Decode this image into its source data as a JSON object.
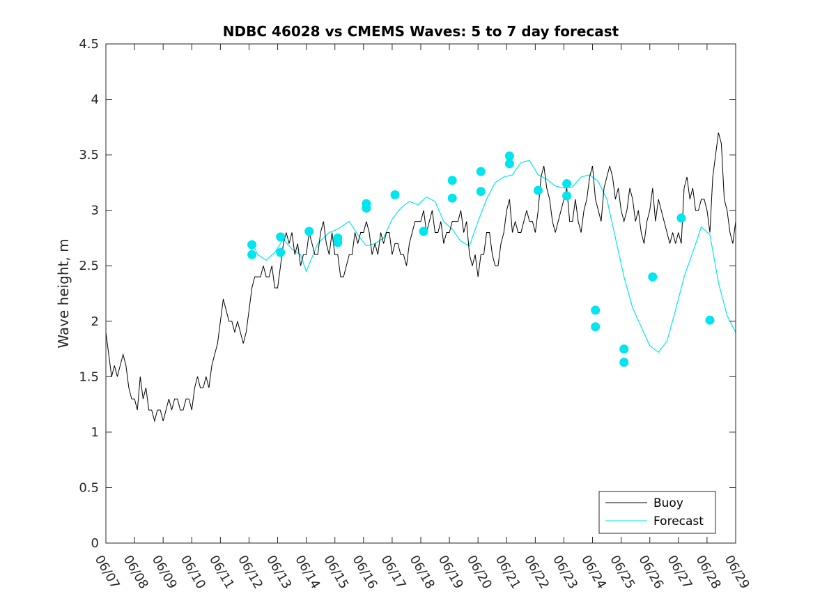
{
  "chart_data": {
    "type": "line",
    "title": "NDBC 46028 vs CMEMS Waves: 5 to 7 day forecast",
    "xlabel": "",
    "ylabel": "Wave height, m",
    "x_ticks": [
      "06/07",
      "06/08",
      "06/09",
      "06/10",
      "06/11",
      "06/12",
      "06/13",
      "06/14",
      "06/15",
      "06/16",
      "06/17",
      "06/18",
      "06/19",
      "06/20",
      "06/21",
      "06/22",
      "06/23",
      "06/24",
      "06/25",
      "06/26",
      "06/27",
      "06/28",
      "06/29"
    ],
    "xlim": [
      0,
      22
    ],
    "ylim": [
      0,
      4.5
    ],
    "y_ticks": [
      "0",
      "0.5",
      "1",
      "1.5",
      "2",
      "2.5",
      "3",
      "3.5",
      "4",
      "4.5"
    ],
    "grid": false,
    "legend_position": "bottom-right",
    "colors": {
      "buoy": "#000000",
      "forecast": "#00e5ee",
      "axis": "#262626"
    },
    "series": [
      {
        "name": "Buoy",
        "comment": "x in days since 06/07",
        "points": [
          [
            0.0,
            1.9
          ],
          [
            0.1,
            1.7
          ],
          [
            0.2,
            1.5
          ],
          [
            0.3,
            1.6
          ],
          [
            0.4,
            1.5
          ],
          [
            0.5,
            1.6
          ],
          [
            0.6,
            1.7
          ],
          [
            0.7,
            1.6
          ],
          [
            0.8,
            1.4
          ],
          [
            0.9,
            1.3
          ],
          [
            1.0,
            1.3
          ],
          [
            1.1,
            1.2
          ],
          [
            1.2,
            1.5
          ],
          [
            1.3,
            1.3
          ],
          [
            1.4,
            1.4
          ],
          [
            1.5,
            1.2
          ],
          [
            1.6,
            1.2
          ],
          [
            1.7,
            1.1
          ],
          [
            1.8,
            1.2
          ],
          [
            1.9,
            1.2
          ],
          [
            2.0,
            1.1
          ],
          [
            2.1,
            1.2
          ],
          [
            2.2,
            1.3
          ],
          [
            2.3,
            1.2
          ],
          [
            2.4,
            1.3
          ],
          [
            2.5,
            1.3
          ],
          [
            2.6,
            1.2
          ],
          [
            2.7,
            1.2
          ],
          [
            2.8,
            1.3
          ],
          [
            2.9,
            1.3
          ],
          [
            3.0,
            1.2
          ],
          [
            3.1,
            1.4
          ],
          [
            3.2,
            1.5
          ],
          [
            3.3,
            1.4
          ],
          [
            3.4,
            1.4
          ],
          [
            3.5,
            1.5
          ],
          [
            3.6,
            1.4
          ],
          [
            3.7,
            1.6
          ],
          [
            3.8,
            1.7
          ],
          [
            3.9,
            1.8
          ],
          [
            4.0,
            2.0
          ],
          [
            4.1,
            2.2
          ],
          [
            4.2,
            2.1
          ],
          [
            4.3,
            2.0
          ],
          [
            4.4,
            2.0
          ],
          [
            4.5,
            1.9
          ],
          [
            4.6,
            2.0
          ],
          [
            4.7,
            1.9
          ],
          [
            4.8,
            1.8
          ],
          [
            4.9,
            1.9
          ],
          [
            5.0,
            2.1
          ],
          [
            5.1,
            2.3
          ],
          [
            5.2,
            2.4
          ],
          [
            5.3,
            2.4
          ],
          [
            5.4,
            2.4
          ],
          [
            5.5,
            2.5
          ],
          [
            5.6,
            2.4
          ],
          [
            5.7,
            2.4
          ],
          [
            5.8,
            2.5
          ],
          [
            5.9,
            2.3
          ],
          [
            6.0,
            2.3
          ],
          [
            6.1,
            2.5
          ],
          [
            6.2,
            2.7
          ],
          [
            6.3,
            2.8
          ],
          [
            6.4,
            2.7
          ],
          [
            6.5,
            2.8
          ],
          [
            6.6,
            2.6
          ],
          [
            6.7,
            2.7
          ],
          [
            6.8,
            2.5
          ],
          [
            6.9,
            2.6
          ],
          [
            7.0,
            2.6
          ],
          [
            7.1,
            2.8
          ],
          [
            7.2,
            2.7
          ],
          [
            7.3,
            2.6
          ],
          [
            7.4,
            2.6
          ],
          [
            7.5,
            2.8
          ],
          [
            7.6,
            2.9
          ],
          [
            7.7,
            2.7
          ],
          [
            7.8,
            2.6
          ],
          [
            7.9,
            2.8
          ],
          [
            8.0,
            2.6
          ],
          [
            8.1,
            2.6
          ],
          [
            8.2,
            2.4
          ],
          [
            8.3,
            2.4
          ],
          [
            8.4,
            2.5
          ],
          [
            8.5,
            2.6
          ],
          [
            8.6,
            2.6
          ],
          [
            8.7,
            2.8
          ],
          [
            8.8,
            2.7
          ],
          [
            8.9,
            2.8
          ],
          [
            9.0,
            2.8
          ],
          [
            9.1,
            2.9
          ],
          [
            9.2,
            2.8
          ],
          [
            9.3,
            2.6
          ],
          [
            9.4,
            2.7
          ],
          [
            9.5,
            2.6
          ],
          [
            9.6,
            2.8
          ],
          [
            9.7,
            2.7
          ],
          [
            9.8,
            2.8
          ],
          [
            9.9,
            2.8
          ],
          [
            10.0,
            2.6
          ],
          [
            10.1,
            2.7
          ],
          [
            10.2,
            2.7
          ],
          [
            10.3,
            2.6
          ],
          [
            10.4,
            2.6
          ],
          [
            10.5,
            2.5
          ],
          [
            10.6,
            2.7
          ],
          [
            10.7,
            2.8
          ],
          [
            10.8,
            2.9
          ],
          [
            10.9,
            2.9
          ],
          [
            11.0,
            2.9
          ],
          [
            11.1,
            3.0
          ],
          [
            11.2,
            2.8
          ],
          [
            11.3,
            2.9
          ],
          [
            11.4,
            3.0
          ],
          [
            11.5,
            2.8
          ],
          [
            11.6,
            2.8
          ],
          [
            11.7,
            2.9
          ],
          [
            11.8,
            2.7
          ],
          [
            11.9,
            2.8
          ],
          [
            12.0,
            2.8
          ],
          [
            12.1,
            2.9
          ],
          [
            12.2,
            2.9
          ],
          [
            12.3,
            2.9
          ],
          [
            12.4,
            3.0
          ],
          [
            12.5,
            2.8
          ],
          [
            12.6,
            2.9
          ],
          [
            12.7,
            2.6
          ],
          [
            12.8,
            2.5
          ],
          [
            12.9,
            2.6
          ],
          [
            13.0,
            2.4
          ],
          [
            13.1,
            2.6
          ],
          [
            13.2,
            2.6
          ],
          [
            13.3,
            2.8
          ],
          [
            13.4,
            2.8
          ],
          [
            13.5,
            2.6
          ],
          [
            13.6,
            2.5
          ],
          [
            13.7,
            2.5
          ],
          [
            13.8,
            2.7
          ],
          [
            13.9,
            2.8
          ],
          [
            14.0,
            3.0
          ],
          [
            14.1,
            3.1
          ],
          [
            14.2,
            2.8
          ],
          [
            14.3,
            2.9
          ],
          [
            14.4,
            2.8
          ],
          [
            14.5,
            2.8
          ],
          [
            14.6,
            2.9
          ],
          [
            14.7,
            3.0
          ],
          [
            14.8,
            2.9
          ],
          [
            14.9,
            2.9
          ],
          [
            15.0,
            2.8
          ],
          [
            15.1,
            3.0
          ],
          [
            15.2,
            3.3
          ],
          [
            15.3,
            3.4
          ],
          [
            15.4,
            3.2
          ],
          [
            15.5,
            3.1
          ],
          [
            15.6,
            2.9
          ],
          [
            15.7,
            2.8
          ],
          [
            15.8,
            2.9
          ],
          [
            15.9,
            3.0
          ],
          [
            16.0,
            3.1
          ],
          [
            16.1,
            3.2
          ],
          [
            16.2,
            2.9
          ],
          [
            16.3,
            2.9
          ],
          [
            16.4,
            3.1
          ],
          [
            16.5,
            2.9
          ],
          [
            16.6,
            2.8
          ],
          [
            16.7,
            3.0
          ],
          [
            16.8,
            3.1
          ],
          [
            16.9,
            3.3
          ],
          [
            17.0,
            3.4
          ],
          [
            17.1,
            3.1
          ],
          [
            17.2,
            3.0
          ],
          [
            17.3,
            2.9
          ],
          [
            17.4,
            3.2
          ],
          [
            17.5,
            3.3
          ],
          [
            17.6,
            3.4
          ],
          [
            17.7,
            3.3
          ],
          [
            17.8,
            3.1
          ],
          [
            17.9,
            3.2
          ],
          [
            18.0,
            3.0
          ],
          [
            18.1,
            2.9
          ],
          [
            18.2,
            3.0
          ],
          [
            18.3,
            3.2
          ],
          [
            18.4,
            3.1
          ],
          [
            18.5,
            2.9
          ],
          [
            18.6,
            3.0
          ],
          [
            18.7,
            2.8
          ],
          [
            18.8,
            2.7
          ],
          [
            18.9,
            2.9
          ],
          [
            19.0,
            3.0
          ],
          [
            19.1,
            3.2
          ],
          [
            19.2,
            2.9
          ],
          [
            19.3,
            3.1
          ],
          [
            19.4,
            3.0
          ],
          [
            19.5,
            2.9
          ],
          [
            19.6,
            2.8
          ],
          [
            19.7,
            2.7
          ],
          [
            19.8,
            2.8
          ],
          [
            19.9,
            2.7
          ],
          [
            20.0,
            2.8
          ],
          [
            20.1,
            2.7
          ],
          [
            20.2,
            3.2
          ],
          [
            20.3,
            3.3
          ],
          [
            20.4,
            3.1
          ],
          [
            20.5,
            3.2
          ],
          [
            20.6,
            3.0
          ],
          [
            20.7,
            3.0
          ],
          [
            20.8,
            3.1
          ],
          [
            20.9,
            3.1
          ],
          [
            21.0,
            3.0
          ],
          [
            21.1,
            2.8
          ],
          [
            21.2,
            3.3
          ],
          [
            21.3,
            3.5
          ],
          [
            21.4,
            3.7
          ],
          [
            21.5,
            3.6
          ],
          [
            21.6,
            3.1
          ],
          [
            21.7,
            3.0
          ],
          [
            21.8,
            2.8
          ],
          [
            21.9,
            2.7
          ],
          [
            22.0,
            2.9
          ]
        ]
      },
      {
        "name": "Forecast",
        "points": [
          [
            5.1,
            2.72
          ],
          [
            5.3,
            2.6
          ],
          [
            5.6,
            2.55
          ],
          [
            5.9,
            2.62
          ],
          [
            6.2,
            2.74
          ],
          [
            6.5,
            2.65
          ],
          [
            6.8,
            2.6
          ],
          [
            7.0,
            2.45
          ],
          [
            7.4,
            2.7
          ],
          [
            7.8,
            2.8
          ],
          [
            8.1,
            2.83
          ],
          [
            8.5,
            2.9
          ],
          [
            8.8,
            2.78
          ],
          [
            9.1,
            2.68
          ],
          [
            9.4,
            2.7
          ],
          [
            9.7,
            2.75
          ],
          [
            10.0,
            2.92
          ],
          [
            10.3,
            3.02
          ],
          [
            10.6,
            3.08
          ],
          [
            10.9,
            3.05
          ],
          [
            11.2,
            3.12
          ],
          [
            11.5,
            3.08
          ],
          [
            11.8,
            2.9
          ],
          [
            12.1,
            2.83
          ],
          [
            12.4,
            2.72
          ],
          [
            12.7,
            2.68
          ],
          [
            13.0,
            2.9
          ],
          [
            13.3,
            3.1
          ],
          [
            13.6,
            3.25
          ],
          [
            13.9,
            3.3
          ],
          [
            14.2,
            3.32
          ],
          [
            14.5,
            3.43
          ],
          [
            14.8,
            3.45
          ],
          [
            15.1,
            3.32
          ],
          [
            15.4,
            3.28
          ],
          [
            15.7,
            3.22
          ],
          [
            16.0,
            3.2
          ],
          [
            16.3,
            3.21
          ],
          [
            16.6,
            3.3
          ],
          [
            16.9,
            3.32
          ],
          [
            17.2,
            3.26
          ],
          [
            17.5,
            3.1
          ],
          [
            17.8,
            2.75
          ],
          [
            18.1,
            2.4
          ],
          [
            18.4,
            2.12
          ],
          [
            18.7,
            1.95
          ],
          [
            19.0,
            1.78
          ],
          [
            19.3,
            1.72
          ],
          [
            19.6,
            1.82
          ],
          [
            19.9,
            2.1
          ],
          [
            20.2,
            2.4
          ],
          [
            20.5,
            2.62
          ],
          [
            20.8,
            2.85
          ],
          [
            21.1,
            2.78
          ],
          [
            21.4,
            2.35
          ],
          [
            21.7,
            2.05
          ],
          [
            22.0,
            1.9
          ]
        ]
      }
    ],
    "forecast_markers": [
      [
        5.1,
        2.69
      ],
      [
        5.1,
        2.6
      ],
      [
        6.1,
        2.76
      ],
      [
        6.1,
        2.62
      ],
      [
        7.1,
        2.81
      ],
      [
        8.1,
        2.75
      ],
      [
        8.1,
        2.71
      ],
      [
        9.1,
        3.06
      ],
      [
        9.1,
        3.02
      ],
      [
        10.1,
        3.14
      ],
      [
        11.1,
        2.81
      ],
      [
        12.1,
        3.27
      ],
      [
        12.1,
        3.11
      ],
      [
        13.1,
        3.35
      ],
      [
        13.1,
        3.17
      ],
      [
        14.1,
        3.49
      ],
      [
        14.1,
        3.42
      ],
      [
        15.1,
        3.18
      ],
      [
        16.1,
        3.24
      ],
      [
        16.1,
        3.13
      ],
      [
        17.1,
        2.1
      ],
      [
        17.1,
        1.95
      ],
      [
        18.1,
        1.75
      ],
      [
        18.1,
        1.63
      ],
      [
        19.1,
        2.4
      ],
      [
        20.1,
        2.93
      ],
      [
        21.1,
        2.01
      ]
    ]
  }
}
